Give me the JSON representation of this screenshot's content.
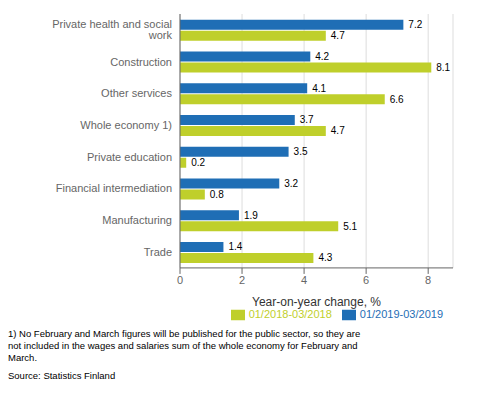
{
  "chart_data": {
    "type": "bar",
    "orientation": "horizontal",
    "categories": [
      "Trade",
      "Manufacturing",
      "Financial intermediation",
      "Private education",
      "Whole economy 1)",
      "Other services",
      "Construction",
      "Private health and social work"
    ],
    "series": [
      {
        "name": "01/2019-03/2019",
        "color": "#1F6EB5",
        "values": [
          1.4,
          1.9,
          3.2,
          3.5,
          3.7,
          4.1,
          4.2,
          7.2
        ]
      },
      {
        "name": "01/2018-03/2018",
        "color": "#BFCF2B",
        "values": [
          4.3,
          5.1,
          0.8,
          0.2,
          4.7,
          6.6,
          8.1,
          4.7
        ]
      }
    ],
    "xlabel": "Year-on-year change, %",
    "xlim": [
      0,
      8.8
    ],
    "xticks": [
      0,
      2,
      4,
      6,
      8
    ],
    "grid": true,
    "legend": "lower right",
    "data_labels": true,
    "annotations": [
      "1) No February and March figures will be published for the public sector, so they are\nnot included in the wages and salaries sum of the whole economy for February and\nMarch.",
      "Source: Statistics Finland"
    ]
  }
}
